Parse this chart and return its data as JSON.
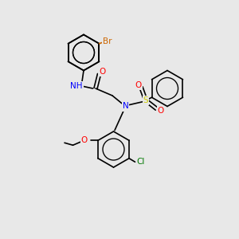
{
  "bg_color": "#e8e8e8",
  "figsize": [
    3.0,
    3.0
  ],
  "dpi": 100,
  "bond_color": "#000000",
  "colors": {
    "Br": "#cc6600",
    "N": "#0000ff",
    "O": "#ff0000",
    "S": "#cccc00",
    "Cl": "#007700",
    "C": "#000000",
    "H": "#000000"
  },
  "font_size": 7.5
}
